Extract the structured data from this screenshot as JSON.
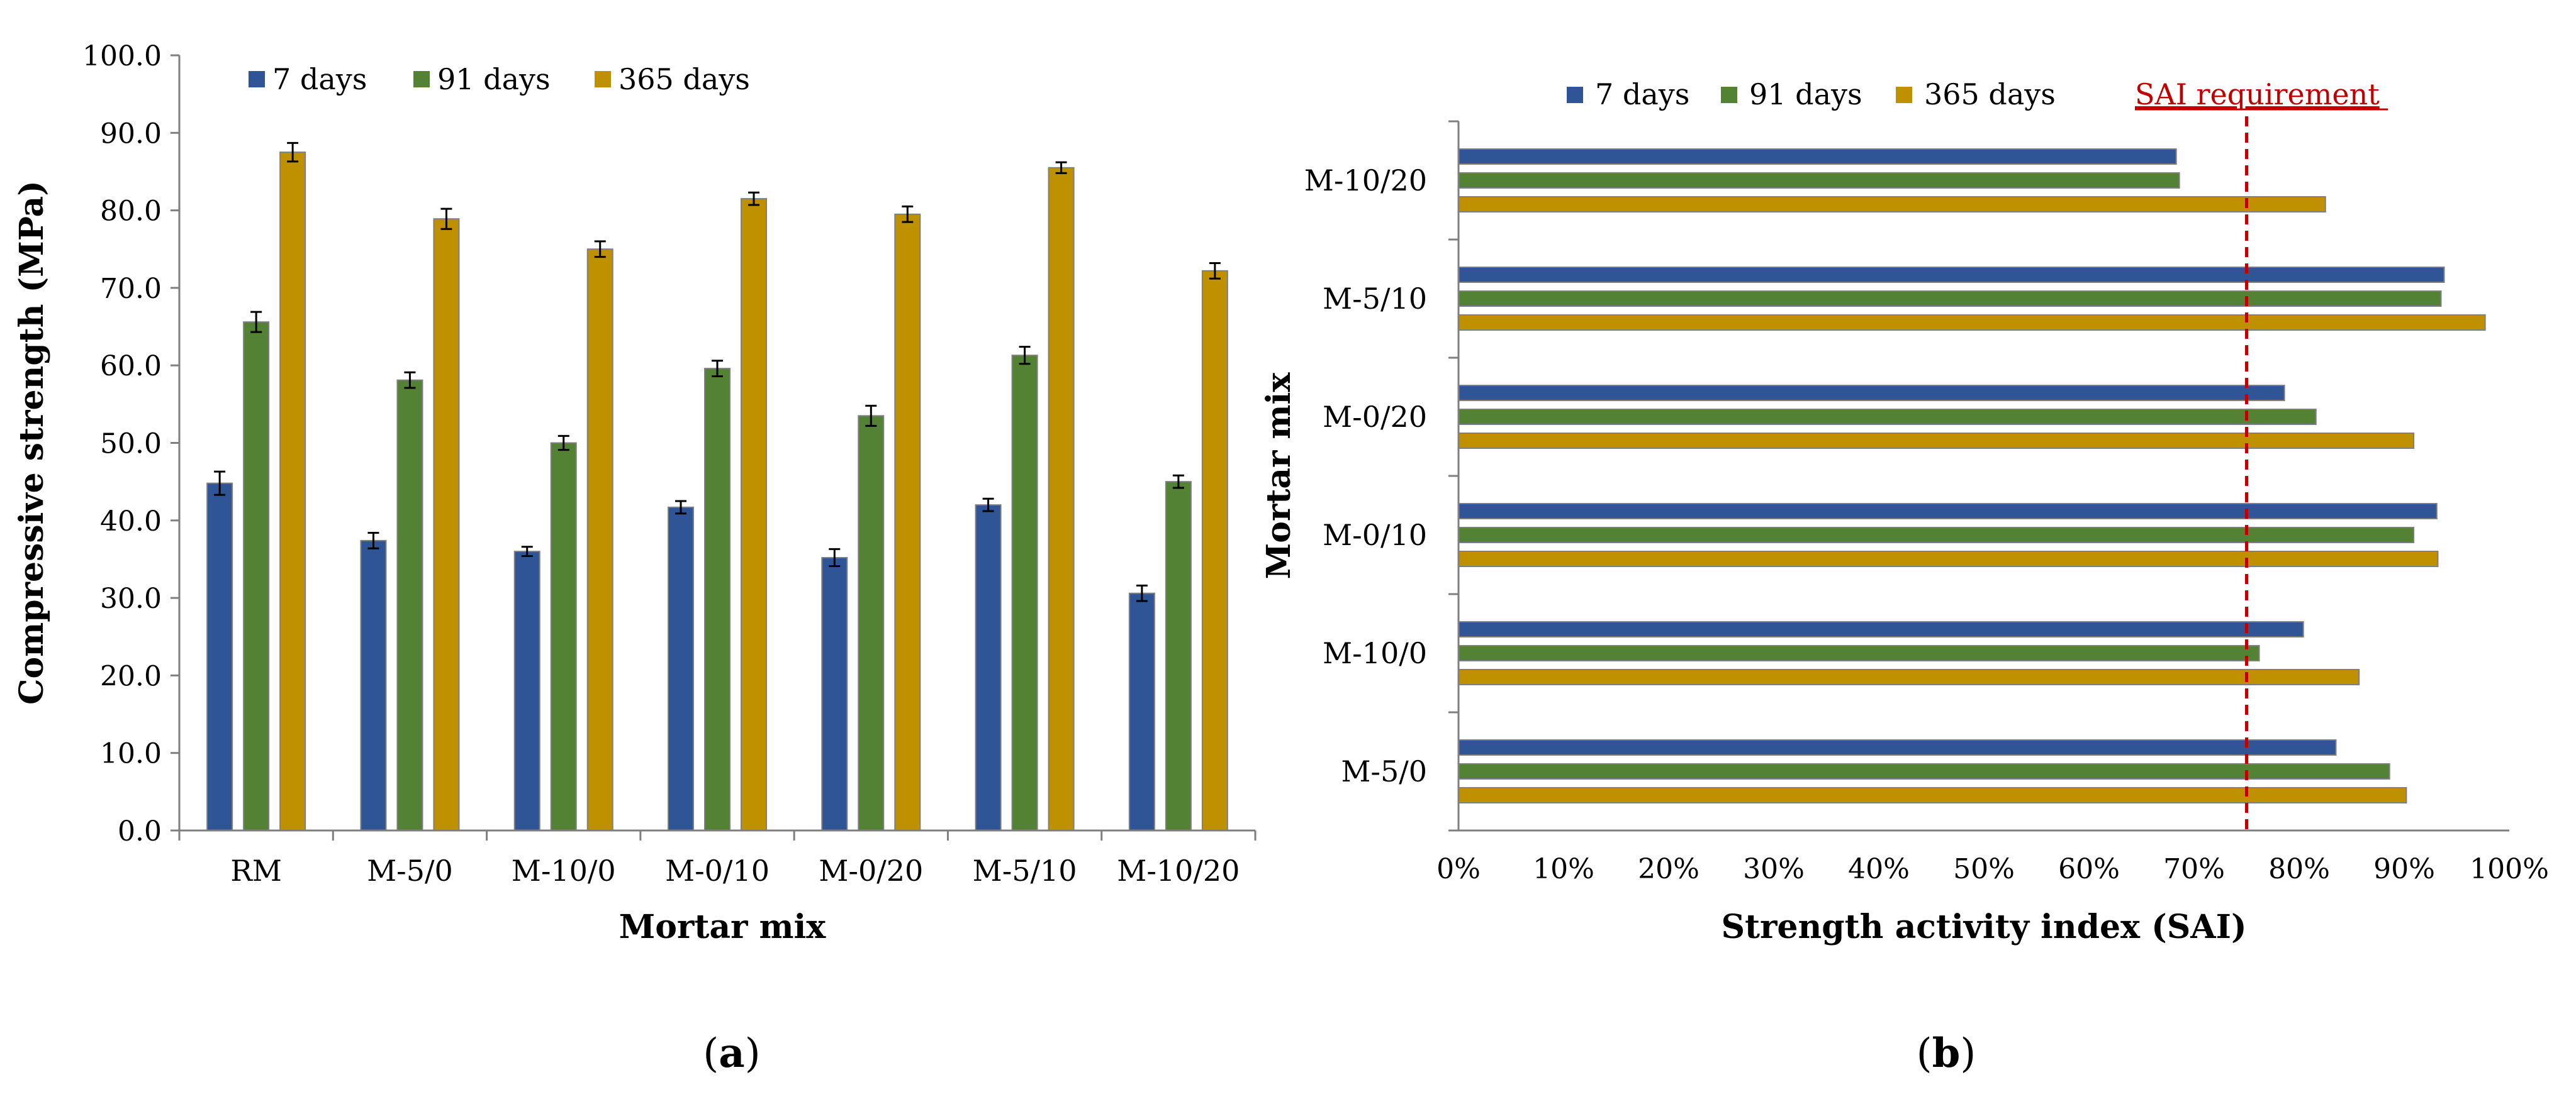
{
  "colors": {
    "d7": "#2F5597",
    "d91": "#548235",
    "d365": "#BF9000",
    "sai_line": "#C00000",
    "axis": "#7F7F7F",
    "err": "#000000"
  },
  "panel_a_label": {
    "open": "(",
    "letter": "a",
    "close": ")"
  },
  "panel_b_label": {
    "open": "(",
    "letter": "b",
    "close": ")"
  },
  "chart_data": [
    {
      "type": "bar",
      "panel": "a",
      "title": "",
      "xlabel": "Mortar mix",
      "ylabel": "Compressive strength (MPa)",
      "ylim": [
        0,
        100
      ],
      "yticks": [
        "0.0",
        "10.0",
        "20.0",
        "30.0",
        "40.0",
        "50.0",
        "60.0",
        "70.0",
        "80.0",
        "90.0",
        "100.0"
      ],
      "categories": [
        "RM",
        "M-5/0",
        "M-10/0",
        "M-0/10",
        "M-0/20",
        "M-5/10",
        "M-10/20"
      ],
      "legend": [
        "7 days",
        "91 days",
        "365 days"
      ],
      "series": [
        {
          "name": "7 days",
          "color": "#2F5597",
          "values": [
            44.8,
            37.4,
            36.0,
            41.7,
            35.2,
            42.0,
            30.6
          ],
          "errors": [
            1.5,
            1.0,
            0.6,
            0.8,
            1.1,
            0.8,
            1.0
          ]
        },
        {
          "name": "91 days",
          "color": "#548235",
          "values": [
            65.6,
            58.1,
            50.0,
            59.6,
            53.5,
            61.3,
            45.0
          ],
          "errors": [
            1.3,
            1.0,
            0.9,
            1.0,
            1.3,
            1.1,
            0.8
          ]
        },
        {
          "name": "365 days",
          "color": "#BF9000",
          "values": [
            87.5,
            78.9,
            75.0,
            81.5,
            79.5,
            85.5,
            72.2
          ],
          "errors": [
            1.2,
            1.3,
            1.0,
            0.8,
            1.0,
            0.7,
            1.0
          ]
        }
      ]
    },
    {
      "type": "bar",
      "orientation": "horizontal",
      "panel": "b",
      "title": "",
      "xlabel": "Strength activity index (SAI)",
      "ylabel": "Mortar mix",
      "xlim": [
        0,
        100
      ],
      "xticks": [
        "0%",
        "10%",
        "20%",
        "30%",
        "40%",
        "50%",
        "60%",
        "70%",
        "80%",
        "90%",
        "100%"
      ],
      "categories": [
        "M-5/0",
        "M-10/0",
        "M-0/10",
        "M-0/20",
        "M-5/10",
        "M-10/20"
      ],
      "legend": [
        "7 days",
        "91 days",
        "365 days",
        "SAI requirement"
      ],
      "reference_line": {
        "label": "SAI requirement",
        "value": 75
      },
      "series": [
        {
          "name": "7 days",
          "color": "#2F5597",
          "values": [
            83.5,
            80.4,
            93.1,
            78.6,
            93.8,
            68.3
          ]
        },
        {
          "name": "91 days",
          "color": "#548235",
          "values": [
            88.6,
            76.2,
            90.9,
            81.6,
            93.5,
            68.6
          ]
        },
        {
          "name": "365 days",
          "color": "#BF9000",
          "values": [
            90.2,
            85.7,
            93.2,
            90.9,
            97.7,
            82.5
          ]
        }
      ]
    }
  ]
}
